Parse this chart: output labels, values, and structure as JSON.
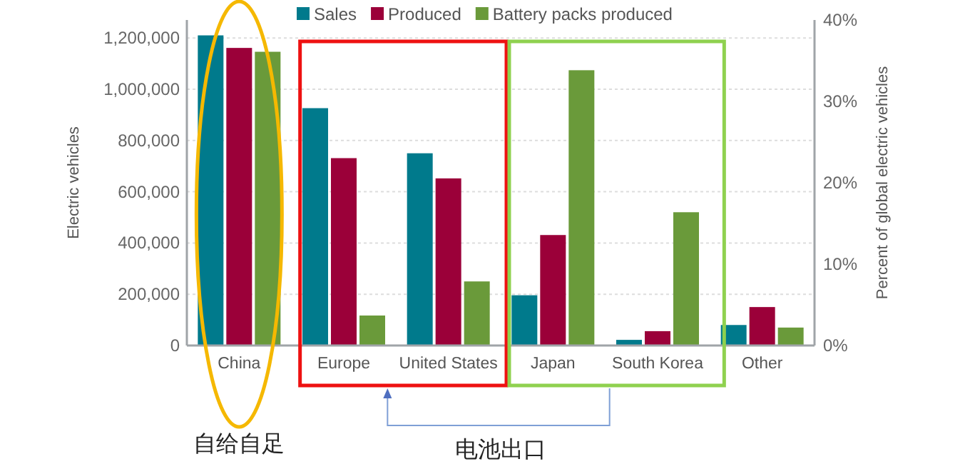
{
  "chart_data": {
    "type": "bar",
    "categories": [
      "China",
      "Europe",
      "United States",
      "Japan",
      "South Korea",
      "Other"
    ],
    "series": [
      {
        "name": "Sales",
        "color": "#007a8c",
        "values": [
          1210000,
          926000,
          750000,
          196000,
          22000,
          80000
        ]
      },
      {
        "name": "Produced",
        "color": "#9b0039",
        "values": [
          1161000,
          731000,
          652000,
          431000,
          56000,
          150000
        ]
      },
      {
        "name": "Battery packs produced",
        "color": "#6a9a3a",
        "values": [
          1146000,
          117000,
          250000,
          1074000,
          520000,
          70000
        ]
      }
    ],
    "ylabel": "Electric vehicles",
    "y2label": "Percent of global electric vehicles",
    "ylim": [
      0,
      1270000
    ],
    "yticks": [
      0,
      {
        "value": 200000,
        "label": "200,000"
      },
      {
        "value": 400000,
        "label": "400,000"
      },
      {
        "value": 600000,
        "label": "600,000"
      },
      {
        "value": 800000,
        "label": "800,000"
      },
      {
        "value": 1000000,
        "label": "1,000,000"
      },
      {
        "value": 1200000,
        "label": "1,200,000"
      }
    ],
    "y2lim": [
      0,
      40
    ],
    "y2ticks": [
      {
        "value": 0,
        "label": "0%"
      },
      {
        "value": 10,
        "label": "10%"
      },
      {
        "value": 20,
        "label": "20%"
      },
      {
        "value": 30,
        "label": "30%"
      },
      {
        "value": 40,
        "label": "40%"
      }
    ],
    "annotations": [
      "自给自足",
      "电池出口"
    ],
    "grid": "y",
    "legend": "top"
  }
}
